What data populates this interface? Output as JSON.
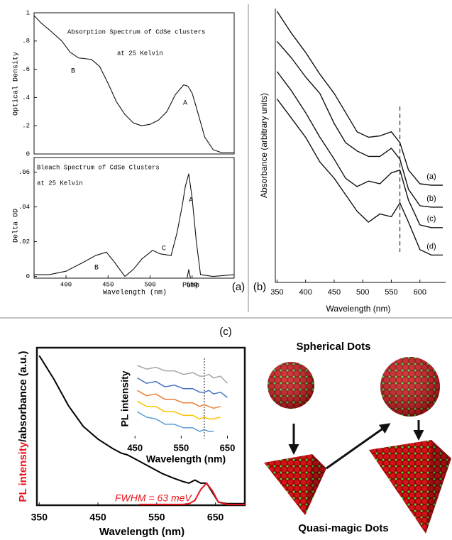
{
  "panel_labels": [
    "(a)",
    "(b)",
    "(c)"
  ],
  "diagram": {
    "top_label": "Spherical Dots",
    "bottom_label": "Quasi-magic Dots"
  },
  "chart_data": [
    {
      "type": "line",
      "title": "Absorption Spectrum of CdSe clusters",
      "subtitle": "at 25 Kelvin",
      "y_label": "Optical Density",
      "annotations": [
        "B",
        "A"
      ],
      "xlim": [
        362,
        600
      ],
      "ylim": [
        0,
        1
      ],
      "yticks": [
        0,
        {
          "value": 0.2,
          "label": ".2"
        },
        {
          "value": 0.4,
          "label": ".4"
        },
        {
          "value": 0.6,
          "label": ".6"
        },
        {
          "value": 0.8,
          "label": ".8"
        },
        1
      ],
      "x": [
        362,
        370,
        380,
        395,
        405,
        415,
        430,
        440,
        450,
        460,
        470,
        480,
        490,
        500,
        510,
        520,
        530,
        540,
        545,
        550,
        555,
        565,
        575,
        585,
        600
      ],
      "series": [
        {
          "color": "#111111",
          "values": [
            0.98,
            0.93,
            0.88,
            0.8,
            0.72,
            0.68,
            0.67,
            0.62,
            0.5,
            0.37,
            0.28,
            0.22,
            0.2,
            0.21,
            0.24,
            0.3,
            0.42,
            0.49,
            0.48,
            0.43,
            0.33,
            0.12,
            0.03,
            0.01,
            0.01
          ]
        }
      ]
    },
    {
      "type": "line",
      "title": "Bleach Spectrum of CdSe Clusters",
      "subtitle": "at 25 Kelvin",
      "y_label": "Delta OD",
      "x_label": "Wavelength (nm)",
      "annotations": [
        "B",
        "C",
        "A",
        "Pump"
      ],
      "xlim": [
        362,
        600
      ],
      "ylim": [
        -0.001,
        0.0684
      ],
      "xticks": [
        400,
        450,
        500,
        550
      ],
      "yticks": [
        0,
        {
          "value": 0.02,
          "label": ".02"
        },
        {
          "value": 0.04,
          "label": ".04"
        },
        {
          "value": 0.06,
          "label": ".06"
        }
      ],
      "x": [
        362,
        380,
        400,
        420,
        435,
        448,
        458,
        470,
        480,
        490,
        503,
        512,
        525,
        532,
        538,
        542,
        546,
        550,
        555,
        560,
        575,
        600
      ],
      "series": [
        {
          "color": "#111111",
          "values": [
            0.001,
            0.001,
            0.003,
            0.008,
            0.012,
            0.014,
            0.008,
            0.0,
            0.004,
            0.01,
            0.015,
            0.013,
            0.012,
            0.025,
            0.04,
            0.052,
            0.059,
            0.045,
            0.02,
            0.001,
            0.0,
            0.001
          ]
        },
        {
          "color": "#111111",
          "x": [
            544,
            546,
            548
          ],
          "values": [
            -0.001,
            0.004,
            -0.001
          ]
        }
      ]
    },
    {
      "type": "line",
      "y_label": "Absorbance (arbitrary units)",
      "x_label": "Wavelength (nm)",
      "xlim": [
        347,
        645
      ],
      "ylim": [
        0,
        10
      ],
      "xticks": [
        350,
        400,
        450,
        500,
        550,
        600
      ],
      "ref_line": 565,
      "x": [
        350,
        375,
        400,
        425,
        450,
        470,
        490,
        510,
        530,
        550,
        565,
        580,
        600,
        620,
        640
      ],
      "series": [
        {
          "name": "(a)",
          "color": "#111111",
          "values": [
            9.9,
            9.1,
            8.4,
            7.6,
            6.9,
            6.2,
            5.5,
            5.3,
            5.35,
            5.5,
            5.1,
            4.1,
            3.6,
            3.55,
            3.55
          ]
        },
        {
          "name": "(b)",
          "color": "#111111",
          "values": [
            8.8,
            8.2,
            7.5,
            6.9,
            5.8,
            5.1,
            4.8,
            4.6,
            4.6,
            4.9,
            4.5,
            3.4,
            2.8,
            2.75,
            2.75
          ]
        },
        {
          "name": "(c)",
          "color": "#111111",
          "values": [
            7.7,
            7.0,
            6.2,
            5.3,
            4.5,
            3.8,
            3.5,
            3.7,
            3.6,
            4.0,
            4.1,
            3.0,
            2.1,
            2.0,
            2.0
          ]
        },
        {
          "name": "(d)",
          "color": "#111111",
          "values": [
            6.7,
            6.0,
            5.3,
            4.4,
            3.8,
            3.2,
            2.6,
            2.2,
            2.5,
            2.4,
            2.9,
            2.2,
            1.2,
            1.0,
            1.0
          ]
        }
      ]
    },
    {
      "type": "line",
      "y_label_colored": "PL intensity",
      "y_label_rest": "/absorbance (a.u.)",
      "x_label": "Wavelength (nm)",
      "annotations": [
        "FWHM = 63 meV"
      ],
      "xlim": [
        346,
        700
      ],
      "ylim": [
        0,
        1
      ],
      "xticks": [
        350,
        450,
        550,
        650
      ],
      "x": [
        350,
        375,
        400,
        425,
        450,
        475,
        490,
        500,
        520,
        540,
        560,
        580,
        595,
        605,
        615,
        625,
        635,
        645,
        655,
        670,
        700
      ],
      "series": [
        {
          "color": "#000000",
          "values": [
            0.95,
            0.8,
            0.63,
            0.5,
            0.42,
            0.36,
            0.33,
            0.32,
            0.28,
            0.24,
            0.2,
            0.17,
            0.15,
            0.14,
            0.16,
            0.14,
            0.14,
            0.08,
            0.02,
            0.01,
            0.01
          ]
        },
        {
          "color": "#e8141c",
          "values": [
            null,
            null,
            null,
            null,
            null,
            null,
            null,
            null,
            0.005,
            0.005,
            0.005,
            0.005,
            0.005,
            0.01,
            0.03,
            0.1,
            0.14,
            0.09,
            0.02,
            0.005,
            0.005
          ]
        }
      ]
    },
    {
      "type": "line",
      "y_label": "PL intensity",
      "x_label": "Wavelength (nm)",
      "xlim": [
        445,
        660
      ],
      "ylim": [
        0.5,
        5
      ],
      "xticks": [
        450,
        550,
        650
      ],
      "ref_line": 600,
      "x": [
        455,
        475,
        495,
        515,
        535,
        555,
        575,
        590,
        600,
        610,
        620,
        635,
        650
      ],
      "series": [
        {
          "color": "#a6a6a6",
          "values": [
            4.6,
            4.4,
            4.5,
            4.3,
            4.3,
            4.1,
            4.2,
            4.0,
            4.0,
            4.1,
            3.9,
            4.0,
            3.6
          ]
        },
        {
          "color": "#4472c4",
          "values": [
            3.9,
            3.6,
            3.7,
            3.4,
            3.5,
            3.3,
            3.3,
            3.1,
            3.1,
            3.2,
            3.0,
            3.1,
            2.8
          ]
        },
        {
          "color": "#ed7d31",
          "values": [
            3.2,
            2.9,
            3.0,
            2.7,
            2.7,
            2.5,
            2.5,
            2.3,
            2.4,
            2.3,
            2.2,
            2.3,
            null
          ]
        },
        {
          "color": "#ffc000",
          "values": [
            2.6,
            2.3,
            2.3,
            2.0,
            2.0,
            1.8,
            1.8,
            1.6,
            1.7,
            1.6,
            1.6,
            1.7,
            null
          ]
        },
        {
          "color": "#5b9bd5",
          "values": [
            2.0,
            1.7,
            1.6,
            1.3,
            1.3,
            1.1,
            1.1,
            0.9,
            1.0,
            0.9,
            0.9,
            null,
            null
          ]
        }
      ]
    }
  ]
}
